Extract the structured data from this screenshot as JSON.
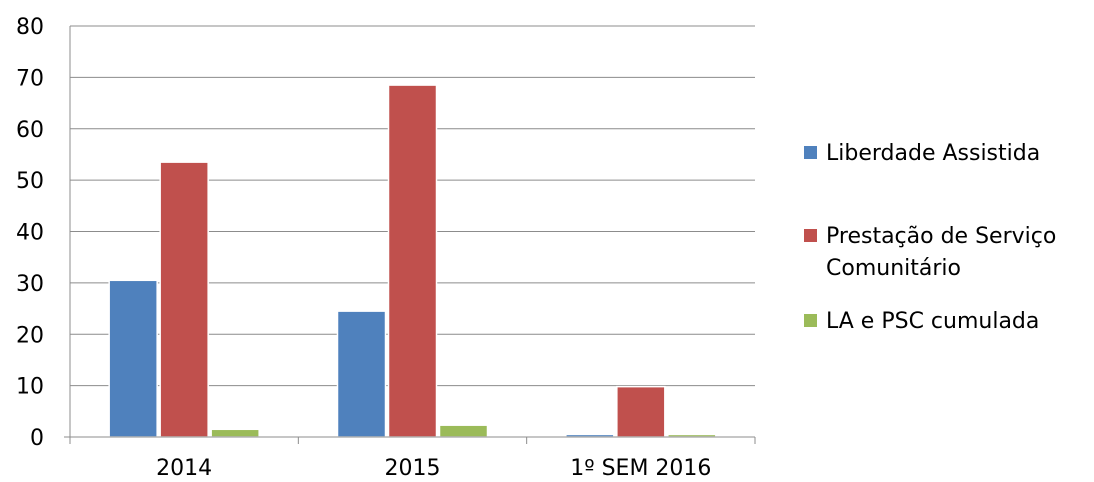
{
  "chart_data": {
    "type": "bar",
    "categories": [
      "2014",
      "2015",
      "1º SEM 2016"
    ],
    "series": [
      {
        "name": "Liberdade Assistida",
        "color": "#4F81BD",
        "values": [
          30.5,
          24.5,
          0.5
        ]
      },
      {
        "name": "Prestação de Serviço Comunitário",
        "legend_lines": [
          "Prestação de Serviço",
          "Comunitário"
        ],
        "color": "#C0504D",
        "values": [
          53.5,
          68.5,
          9.8
        ]
      },
      {
        "name": "LA e PSC cumulada",
        "color": "#9BBB59",
        "values": [
          1.5,
          2.3,
          0.5
        ]
      }
    ],
    "ylim": [
      0,
      80
    ],
    "yticks": [
      0,
      10,
      20,
      30,
      40,
      50,
      60,
      70,
      80
    ],
    "title": "",
    "xlabel": "",
    "ylabel": "",
    "grid": true,
    "legend_position": "right"
  }
}
